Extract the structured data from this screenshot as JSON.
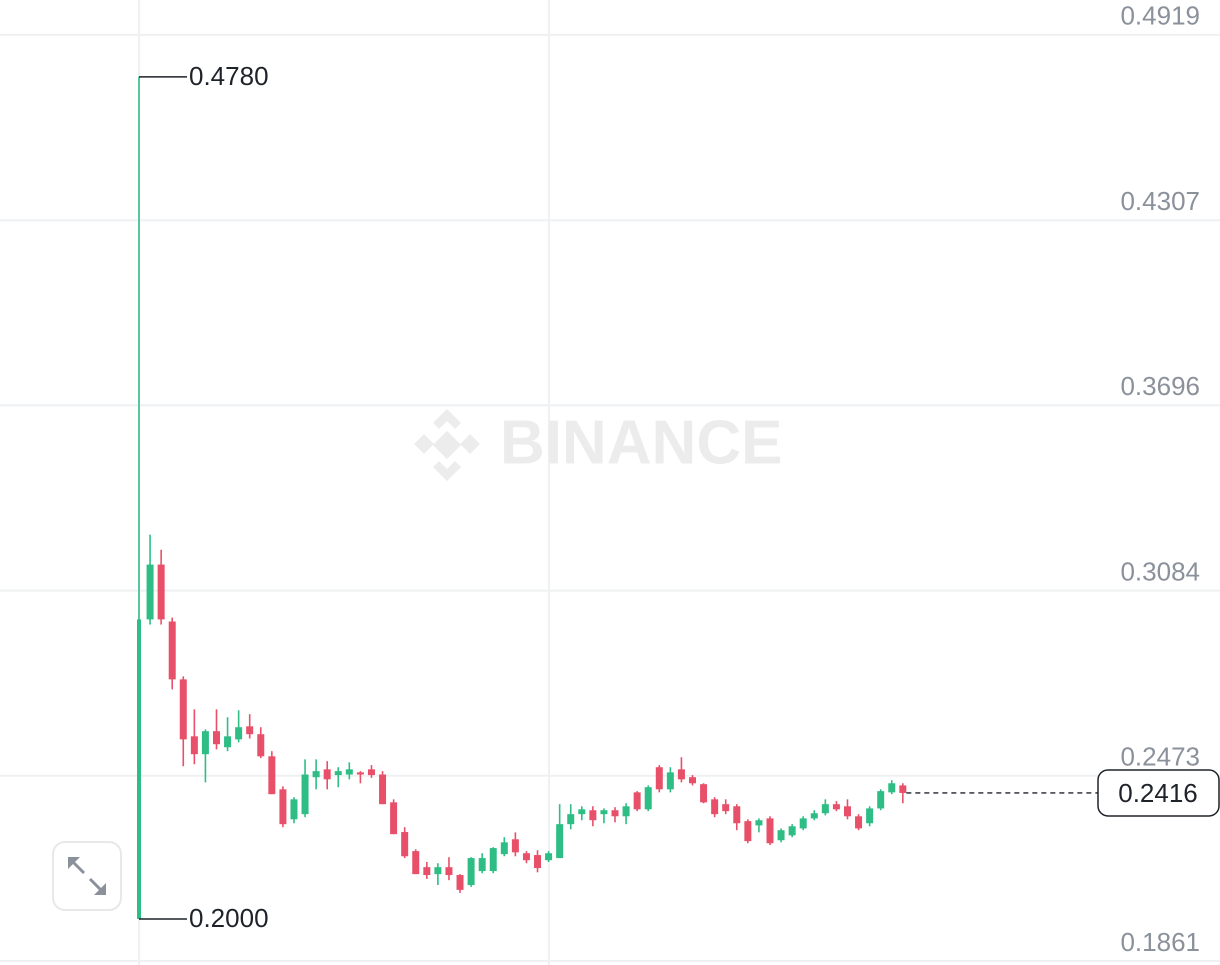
{
  "chart_data": {
    "type": "candlestick",
    "watermark": "BINANCE",
    "ylim": [
      0.1848,
      0.5034
    ],
    "yticks": [
      0.4919,
      0.4307,
      0.3696,
      0.3084,
      0.2473,
      0.1861
    ],
    "grid": true,
    "up_color": "#2ebd85",
    "down_color": "#e8506a",
    "high_label": {
      "value": 0.478,
      "label": "0.4780"
    },
    "low_label": {
      "value": 0.2,
      "label": "0.2000"
    },
    "last_price": 0.2416,
    "open": [
      0.2,
      0.2989,
      0.317,
      0.2982,
      0.2791,
      0.2603,
      0.2544,
      0.262,
      0.2567,
      0.2593,
      0.2636,
      0.261,
      0.2537,
      0.2428,
      0.2329,
      0.2346,
      0.2468,
      0.2494,
      0.2475,
      0.2477,
      0.2484,
      0.2494,
      0.2477,
      0.2385,
      0.2287,
      0.2224,
      0.2171,
      0.2148,
      0.2171,
      0.2145,
      0.2112,
      0.2158,
      0.2158,
      0.2214,
      0.2263,
      0.2217,
      0.2211,
      0.2194,
      0.2201,
      0.2313,
      0.2346,
      0.2359,
      0.2346,
      0.2359,
      0.2339,
      0.2418,
      0.2362,
      0.2501,
      0.2428,
      0.2494,
      0.2468,
      0.2445,
      0.2395,
      0.2379,
      0.2372,
      0.2323,
      0.2309,
      0.2332,
      0.226,
      0.2276,
      0.2299,
      0.2332,
      0.2349,
      0.2379,
      0.2372,
      0.2339,
      0.2316,
      0.2365,
      0.2418,
      0.2441
    ],
    "high": [
      0.478,
      0.3269,
      0.3219,
      0.2995,
      0.2801,
      0.2692,
      0.2626,
      0.2692,
      0.2666,
      0.2689,
      0.2676,
      0.2633,
      0.2554,
      0.2438,
      0.2402,
      0.2527,
      0.2527,
      0.2521,
      0.2501,
      0.2517,
      0.2488,
      0.2508,
      0.2488,
      0.2395,
      0.2303,
      0.223,
      0.2188,
      0.2184,
      0.2204,
      0.2148,
      0.2204,
      0.2217,
      0.2237,
      0.227,
      0.2286,
      0.2224,
      0.2227,
      0.2224,
      0.2379,
      0.2379,
      0.2372,
      0.2372,
      0.2365,
      0.2369,
      0.2382,
      0.2422,
      0.2441,
      0.2508,
      0.2501,
      0.2534,
      0.2475,
      0.2448,
      0.2402,
      0.2395,
      0.2379,
      0.2329,
      0.2332,
      0.2339,
      0.2299,
      0.2313,
      0.2339,
      0.2359,
      0.2395,
      0.2389,
      0.2395,
      0.2346,
      0.2372,
      0.2428,
      0.2458,
      0.2448
    ],
    "low": [
      0.2,
      0.2972,
      0.2972,
      0.2758,
      0.2504,
      0.2511,
      0.2451,
      0.256,
      0.2554,
      0.2583,
      0.2596,
      0.2531,
      0.2412,
      0.2303,
      0.2316,
      0.2336,
      0.2428,
      0.2428,
      0.2435,
      0.2461,
      0.2448,
      0.2466,
      0.2379,
      0.228,
      0.2201,
      0.2148,
      0.2132,
      0.2112,
      0.2128,
      0.2086,
      0.2106,
      0.2151,
      0.2151,
      0.2207,
      0.2207,
      0.2184,
      0.2154,
      0.2188,
      0.2201,
      0.2296,
      0.2326,
      0.2306,
      0.2316,
      0.2319,
      0.2313,
      0.2356,
      0.2356,
      0.2418,
      0.2418,
      0.2451,
      0.2441,
      0.2382,
      0.2336,
      0.2346,
      0.2293,
      0.225,
      0.2286,
      0.2244,
      0.2253,
      0.227,
      0.2293,
      0.2326,
      0.2342,
      0.2356,
      0.2329,
      0.2293,
      0.2306,
      0.2359,
      0.2412,
      0.2382
    ],
    "close": [
      0.2989,
      0.317,
      0.2989,
      0.2791,
      0.2593,
      0.2544,
      0.262,
      0.2577,
      0.2603,
      0.2633,
      0.261,
      0.2537,
      0.2412,
      0.2313,
      0.2395,
      0.2477,
      0.2488,
      0.2461,
      0.2488,
      0.2494,
      0.2477,
      0.2475,
      0.2379,
      0.228,
      0.2207,
      0.2148,
      0.2145,
      0.2171,
      0.2145,
      0.2096,
      0.2201,
      0.2201,
      0.2234,
      0.2253,
      0.222,
      0.2194,
      0.2168,
      0.2217,
      0.2313,
      0.2346,
      0.2362,
      0.2326,
      0.2359,
      0.2339,
      0.2372,
      0.2362,
      0.2435,
      0.2428,
      0.2484,
      0.2461,
      0.2448,
      0.2385,
      0.2346,
      0.2356,
      0.2316,
      0.2257,
      0.2326,
      0.225,
      0.2293,
      0.2306,
      0.2332,
      0.2349,
      0.2379,
      0.2362,
      0.2339,
      0.2299,
      0.2365,
      0.2422,
      0.2448,
      0.2416
    ]
  }
}
